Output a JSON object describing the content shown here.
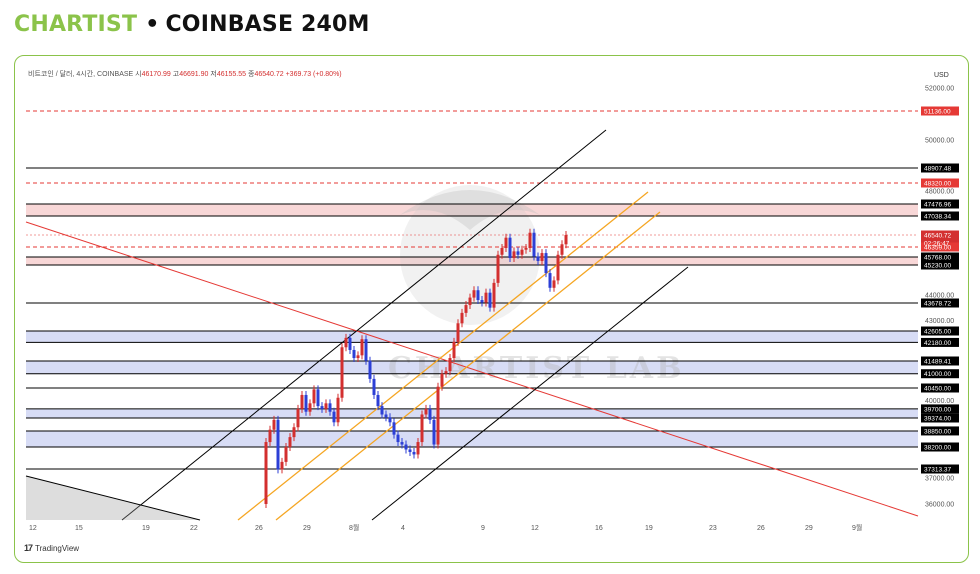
{
  "header": {
    "brand": "CHARTIST",
    "separator": "•",
    "market": "COINBASE 240M"
  },
  "symbol_info": {
    "pair": "비트코인 / 달러, 4시간, COINBASE",
    "open_label": "시",
    "open": "46170.99",
    "high_label": "고",
    "high": "46691.90",
    "low_label": "저",
    "low": "46155.55",
    "close_label": "종",
    "close": "46540.72",
    "change": "+369.73 (+0.80%)"
  },
  "footer": {
    "logo_mark": "17",
    "logo_text": "TradingView"
  },
  "watermark": "CHARTIST LAB",
  "colors": {
    "up": "#d32f2f",
    "down": "#2c3fd6",
    "red_dashed": "#e53935",
    "black_line": "#000000",
    "pink_zone": "#f8d7d7",
    "blue_zone": "#d7dcf5",
    "orange_channel": "#f5a623",
    "brand": "#8bc34a"
  },
  "chart_data": {
    "type": "candlestick",
    "currency": "USD",
    "price_axis_ticks": [
      52000,
      50000,
      48000,
      44000,
      43000,
      40000,
      37000,
      36000
    ],
    "x_tick_labels": [
      "12",
      "15",
      "19",
      "22",
      "26",
      "29",
      "8월",
      "4",
      "9",
      "12",
      "16",
      "19",
      "23",
      "26",
      "29",
      "9월"
    ],
    "horizontal_levels": [
      {
        "price": 51136.0,
        "label": "51136.00",
        "style": "red-dashed"
      },
      {
        "price": 48907.48,
        "label": "48907.48",
        "style": "black"
      },
      {
        "price": 48320.0,
        "label": "48320.00",
        "style": "red-dashed"
      },
      {
        "price": 47476.96,
        "label": "47476.96",
        "style": "black"
      },
      {
        "price": 47038.34,
        "label": "47038.34",
        "style": "black"
      },
      {
        "price": 46540.72,
        "label": "46540.72",
        "style": "current-price"
      },
      {
        "price": 46359.0,
        "label": "46359.00",
        "style": "red-dashed"
      },
      {
        "price": 45768.0,
        "label": "45768.00",
        "style": "black"
      },
      {
        "price": 45230.0,
        "label": "45230.00",
        "style": "black"
      },
      {
        "price": 43678.72,
        "label": "43678.72",
        "style": "black"
      },
      {
        "price": 42605.0,
        "label": "42605.00",
        "style": "black"
      },
      {
        "price": 42180.0,
        "label": "42180.00",
        "style": "black"
      },
      {
        "price": 41489.41,
        "label": "41489.41",
        "style": "black"
      },
      {
        "price": 41000.0,
        "label": "41000.00",
        "style": "black"
      },
      {
        "price": 40450.0,
        "label": "40450.00",
        "style": "black"
      },
      {
        "price": 39700.0,
        "label": "39700.00",
        "style": "black"
      },
      {
        "price": 39374.0,
        "label": "39374.00",
        "style": "black"
      },
      {
        "price": 38850.0,
        "label": "38850.00",
        "style": "black"
      },
      {
        "price": 38200.0,
        "label": "38200.00",
        "style": "black"
      },
      {
        "price": 37313.37,
        "label": "37313.37",
        "style": "black"
      }
    ],
    "zones": [
      {
        "from": 47038.34,
        "to": 47476.96,
        "color": "pink"
      },
      {
        "from": 45230.0,
        "to": 45768.0,
        "color": "pink"
      },
      {
        "from": 42180.0,
        "to": 42605.0,
        "color": "blue"
      },
      {
        "from": 41000.0,
        "to": 41489.41,
        "color": "blue"
      },
      {
        "from": 39374.0,
        "to": 39700.0,
        "color": "blue"
      },
      {
        "from": 38200.0,
        "to": 38850.0,
        "color": "blue"
      }
    ],
    "countdown": "02:26:47",
    "last_price": "46540.72"
  }
}
